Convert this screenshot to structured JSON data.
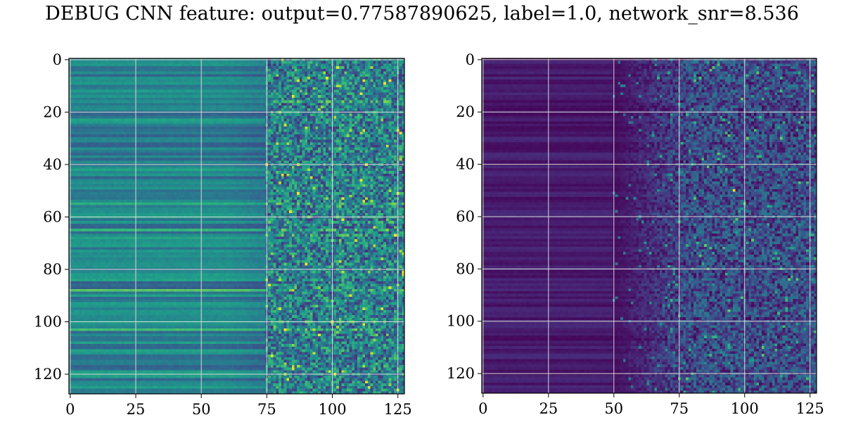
{
  "figure": {
    "title": "DEBUG CNN feature: output=0.77587890625, label=1.0, network_snr=8.536"
  },
  "chart_data": [
    {
      "type": "heatmap",
      "colormap": "viridis",
      "rows": 128,
      "cols": 128,
      "xlim": [
        -0.5,
        127.5
      ],
      "ylim": [
        127.5,
        -0.5
      ],
      "x_ticks": [
        0,
        25,
        50,
        75,
        100,
        125
      ],
      "y_ticks": [
        0,
        20,
        40,
        60,
        80,
        100,
        120
      ],
      "grid": true,
      "description_levels": {
        "columns_0_to_75": "smooth horizontal bands, mostly mid-range (teal/blue)",
        "columns_75_to_127": "noisy, mix of dark blue and bright green speckles",
        "bright_rows": [
          16,
          55,
          62,
          65,
          67,
          88,
          100,
          103
        ]
      }
    },
    {
      "type": "heatmap",
      "colormap": "viridis",
      "rows": 128,
      "cols": 128,
      "xlim": [
        -0.5,
        127.5
      ],
      "ylim": [
        127.5,
        -0.5
      ],
      "x_ticks": [
        0,
        25,
        50,
        75,
        100,
        125
      ],
      "y_ticks": [
        0,
        20,
        40,
        60,
        80,
        100,
        120
      ],
      "grid": true,
      "description_levels": {
        "columns_0_to_50": "very low values (dark purple) with faint horizontal bands",
        "columns_50_to_127": "sparse speckled noise, occasional bright teal/green pixels",
        "peak_pixel": [
          96,
          50
        ]
      }
    }
  ]
}
